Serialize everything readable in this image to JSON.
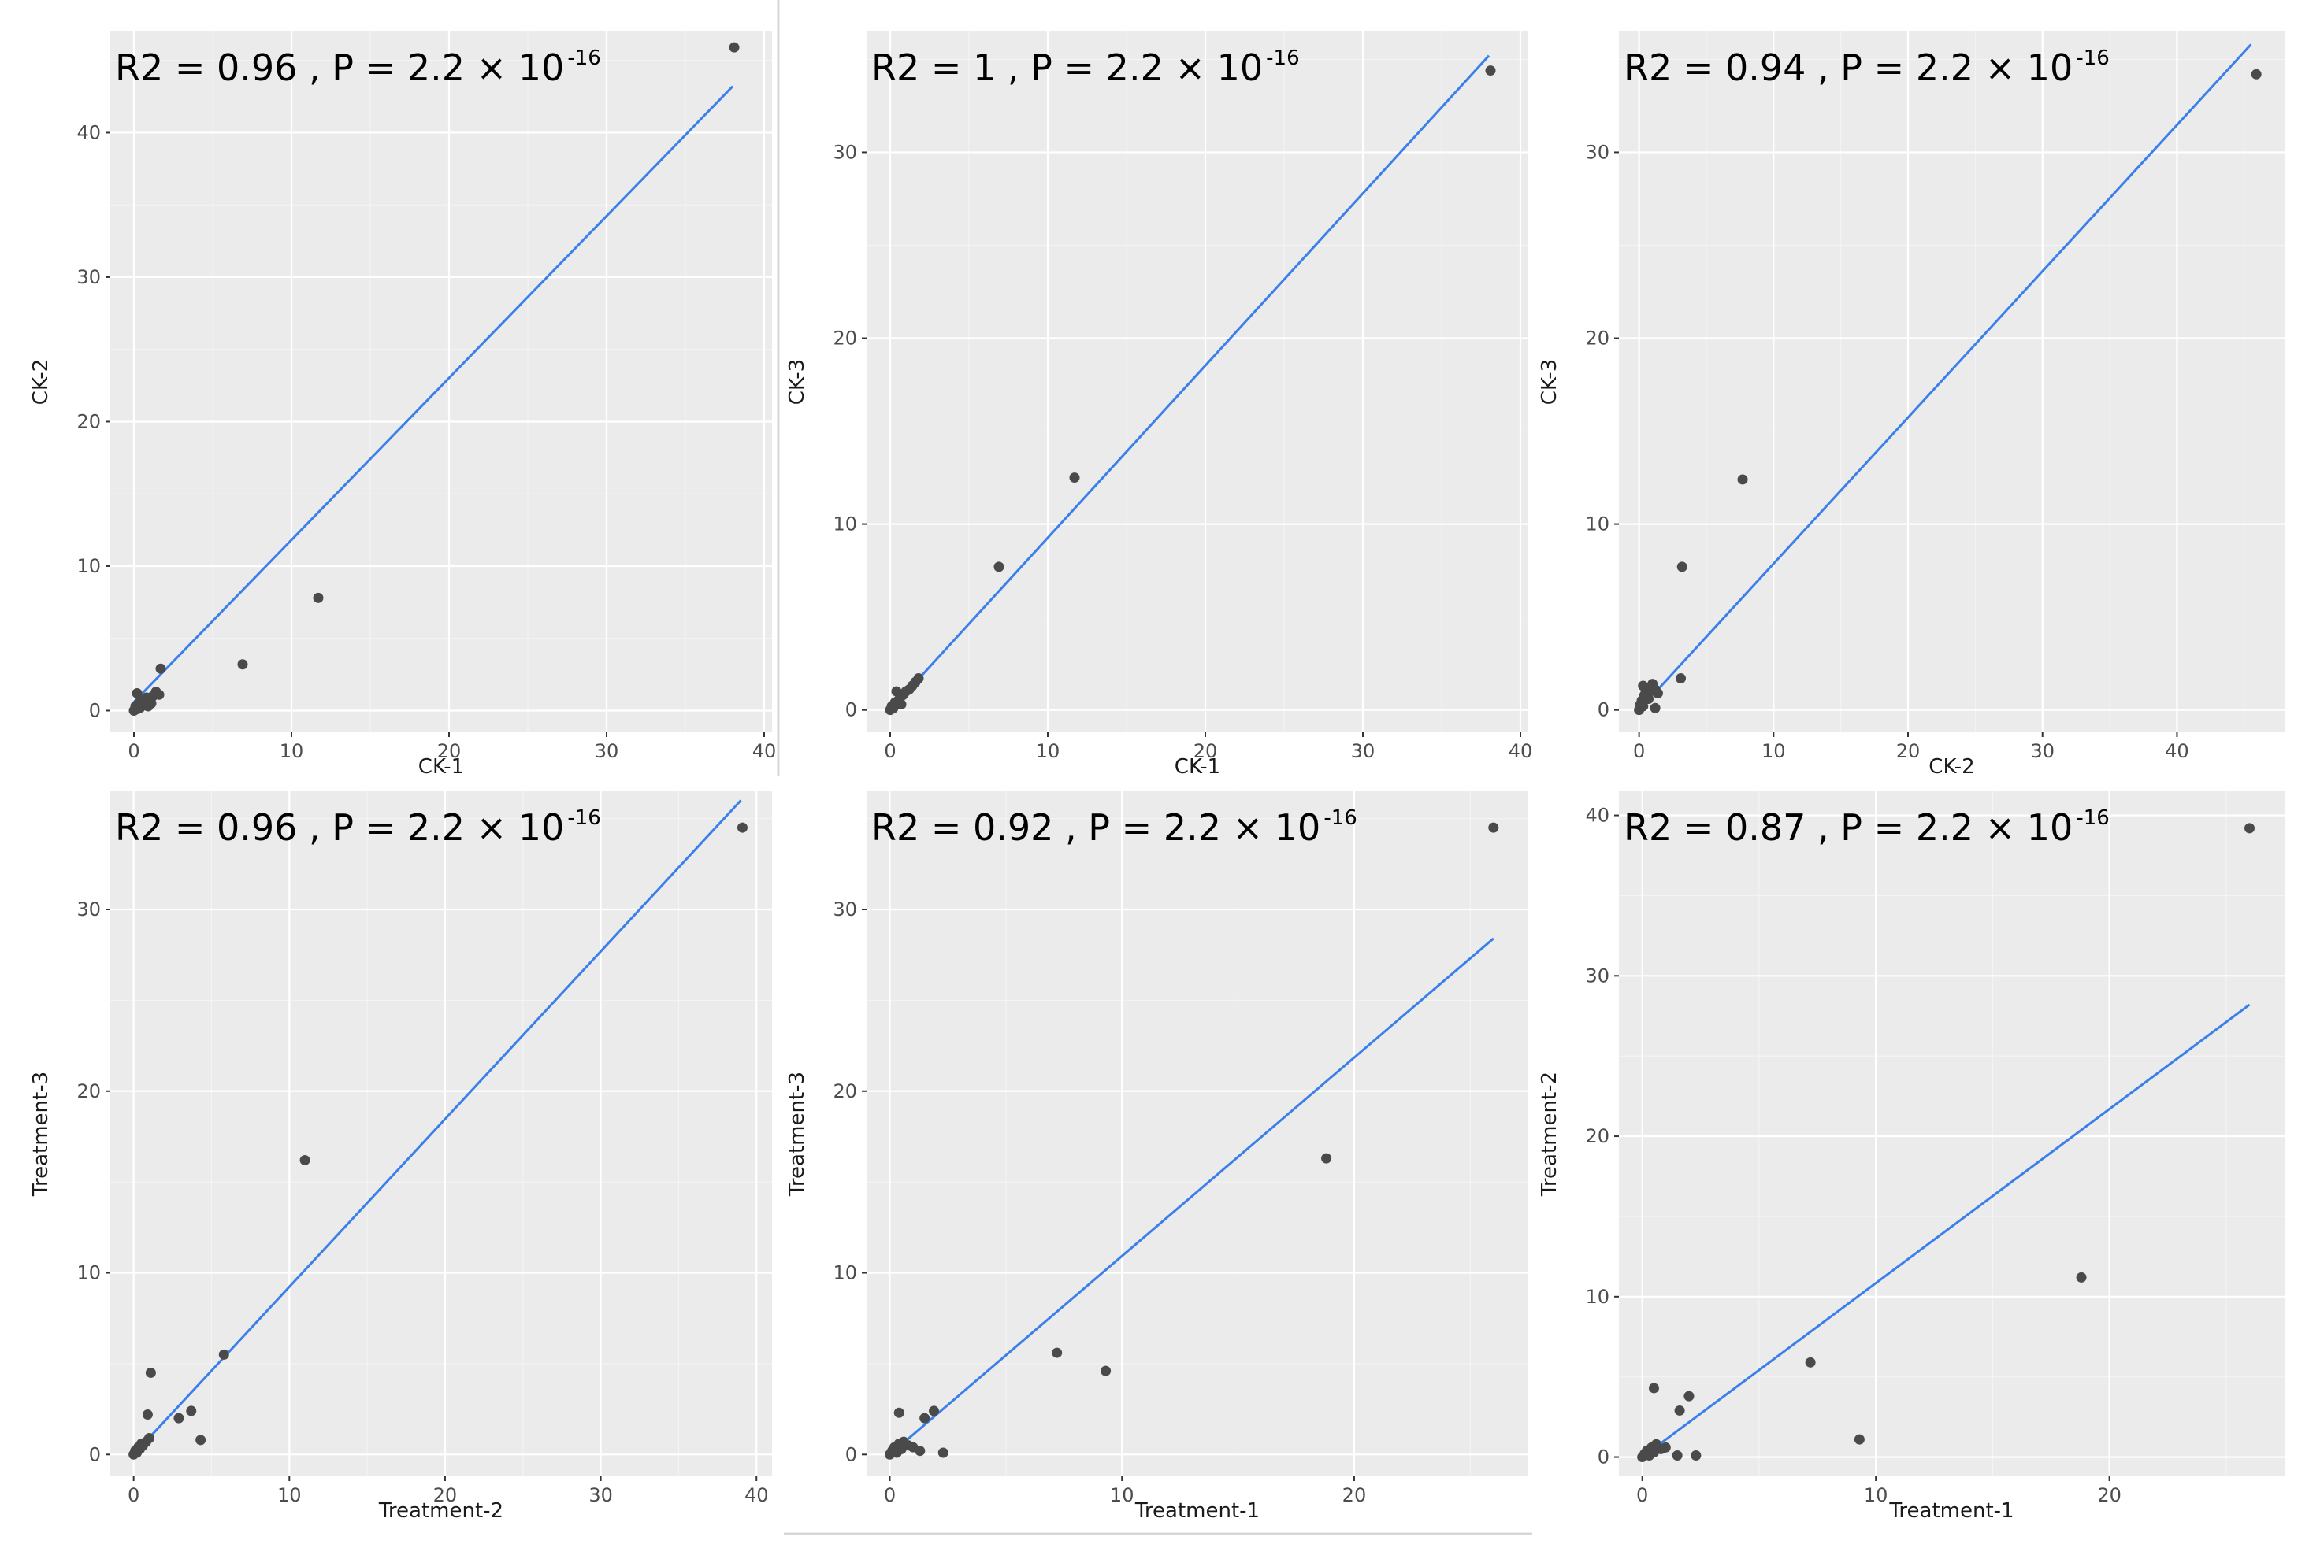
{
  "chart_data": [
    {
      "type": "scatter",
      "xlabel": "CK-1",
      "ylabel": "CK-2",
      "annotation": {
        "r2_text": "R2 = 0.96 , P = 2.2 × 10",
        "exponent": "-16"
      },
      "xlim": [
        -1.5,
        40.5
      ],
      "ylim": [
        -1.5,
        47.0
      ],
      "xticks": [
        0,
        10,
        20,
        30,
        40
      ],
      "yticks": [
        0,
        10,
        20,
        30,
        40
      ],
      "fit_line": {
        "x": [
          0,
          38.0
        ],
        "y": [
          0.6,
          43.2
        ]
      },
      "points": [
        [
          0,
          0
        ],
        [
          0.1,
          0.3
        ],
        [
          0.2,
          0.1
        ],
        [
          0.3,
          0.5
        ],
        [
          0.4,
          0.2
        ],
        [
          0.5,
          0.7
        ],
        [
          0.6,
          0.4
        ],
        [
          0.8,
          0.9
        ],
        [
          1.0,
          0.6
        ],
        [
          1.2,
          1.0
        ],
        [
          1.4,
          1.3
        ],
        [
          1.6,
          1.1
        ],
        [
          0.9,
          0.3
        ],
        [
          0.2,
          1.2
        ],
        [
          1.1,
          0.5
        ],
        [
          1.7,
          2.9
        ],
        [
          6.9,
          3.2
        ],
        [
          11.7,
          7.8
        ],
        [
          38.1,
          45.9
        ]
      ]
    },
    {
      "type": "scatter",
      "xlabel": "CK-1",
      "ylabel": "CK-3",
      "annotation": {
        "r2_text": "R2 = 1 , P = 2.2 × 10",
        "exponent": "-16"
      },
      "xlim": [
        -1.5,
        40.5
      ],
      "ylim": [
        -1.2,
        36.5
      ],
      "xticks": [
        0,
        10,
        20,
        30,
        40
      ],
      "yticks": [
        0,
        10,
        20,
        30
      ],
      "fit_line": {
        "x": [
          0,
          38.0
        ],
        "y": [
          0,
          35.2
        ]
      },
      "points": [
        [
          0,
          0
        ],
        [
          0.1,
          0.2
        ],
        [
          0.2,
          0.1
        ],
        [
          0.3,
          0.4
        ],
        [
          0.5,
          0.5
        ],
        [
          0.6,
          0.6
        ],
        [
          0.8,
          0.8
        ],
        [
          1.0,
          1.0
        ],
        [
          1.2,
          1.1
        ],
        [
          1.4,
          1.3
        ],
        [
          1.6,
          1.5
        ],
        [
          1.8,
          1.7
        ],
        [
          0.4,
          1.0
        ],
        [
          0.7,
          0.3
        ],
        [
          6.9,
          7.7
        ],
        [
          11.7,
          12.5
        ],
        [
          38.1,
          34.4
        ]
      ]
    },
    {
      "type": "scatter",
      "xlabel": "CK-2",
      "ylabel": "CK-3",
      "annotation": {
        "r2_text": "R2 = 0.94 , P = 2.2 × 10",
        "exponent": "-16"
      },
      "xlim": [
        -1.5,
        48.0
      ],
      "ylim": [
        -1.2,
        36.5
      ],
      "xticks": [
        0,
        10,
        20,
        30,
        40
      ],
      "yticks": [
        0,
        10,
        20,
        30
      ],
      "fit_line": {
        "x": [
          0,
          45.5
        ],
        "y": [
          0,
          35.8
        ]
      },
      "points": [
        [
          0,
          0
        ],
        [
          0.1,
          0.3
        ],
        [
          0.2,
          0.5
        ],
        [
          0.3,
          0.2
        ],
        [
          0.4,
          0.8
        ],
        [
          0.5,
          1.2
        ],
        [
          0.7,
          0.6
        ],
        [
          0.8,
          1.0
        ],
        [
          1.0,
          1.4
        ],
        [
          1.2,
          1.1
        ],
        [
          1.4,
          0.9
        ],
        [
          0.3,
          1.3
        ],
        [
          1.2,
          0.1
        ],
        [
          3.1,
          1.7
        ],
        [
          3.2,
          7.7
        ],
        [
          7.7,
          12.4
        ],
        [
          45.9,
          34.2
        ]
      ]
    },
    {
      "type": "scatter",
      "xlabel": "Treatment-2",
      "ylabel": "Treatment-3",
      "annotation": {
        "r2_text": "R2 = 0.96 , P = 2.2 × 10",
        "exponent": "-16"
      },
      "xlim": [
        -1.5,
        41.0
      ],
      "ylim": [
        -1.2,
        36.5
      ],
      "xticks": [
        0,
        10,
        20,
        30,
        40
      ],
      "yticks": [
        0,
        10,
        20,
        30
      ],
      "fit_line": {
        "x": [
          0,
          39.0
        ],
        "y": [
          0,
          36.0
        ]
      },
      "points": [
        [
          0,
          0
        ],
        [
          0.1,
          0.2
        ],
        [
          0.2,
          0.1
        ],
        [
          0.3,
          0.4
        ],
        [
          0.4,
          0.3
        ],
        [
          0.5,
          0.6
        ],
        [
          0.6,
          0.5
        ],
        [
          0.8,
          0.7
        ],
        [
          1.0,
          0.9
        ],
        [
          0.9,
          2.2
        ],
        [
          1.1,
          4.5
        ],
        [
          2.9,
          2.0
        ],
        [
          3.7,
          2.4
        ],
        [
          4.3,
          0.8
        ],
        [
          5.8,
          5.5
        ],
        [
          11.0,
          16.2
        ],
        [
          39.1,
          34.5
        ]
      ]
    },
    {
      "type": "scatter",
      "xlabel": "Treatment-1",
      "ylabel": "Treatment-3",
      "annotation": {
        "r2_text": "R2 = 0.92 , P = 2.2 × 10",
        "exponent": "-16"
      },
      "xlim": [
        -1.0,
        27.5
      ],
      "ylim": [
        -1.2,
        36.5
      ],
      "xticks": [
        0,
        10,
        20
      ],
      "yticks": [
        0,
        10,
        20,
        30
      ],
      "fit_line": {
        "x": [
          0,
          26.0
        ],
        "y": [
          0,
          28.4
        ]
      },
      "points": [
        [
          0,
          0
        ],
        [
          0.1,
          0.2
        ],
        [
          0.2,
          0.4
        ],
        [
          0.3,
          0.1
        ],
        [
          0.4,
          0.6
        ],
        [
          0.5,
          0.3
        ],
        [
          0.6,
          0.7
        ],
        [
          0.8,
          0.5
        ],
        [
          1.0,
          0.4
        ],
        [
          0.4,
          2.3
        ],
        [
          1.3,
          0.2
        ],
        [
          1.5,
          2.0
        ],
        [
          1.9,
          2.4
        ],
        [
          2.3,
          0.1
        ],
        [
          7.2,
          5.6
        ],
        [
          9.3,
          4.6
        ],
        [
          18.8,
          16.3
        ],
        [
          26.0,
          34.5
        ]
      ]
    },
    {
      "type": "scatter",
      "xlabel": "Treatment-1",
      "ylabel": "Treatment-2",
      "annotation": {
        "r2_text": "R2 = 0.87 , P = 2.2 × 10",
        "exponent": "-16"
      },
      "xlim": [
        -1.0,
        27.5
      ],
      "ylim": [
        -1.2,
        41.5
      ],
      "xticks": [
        0,
        10,
        20
      ],
      "yticks": [
        0,
        10,
        20,
        30,
        40
      ],
      "fit_line": {
        "x": [
          0,
          26.0
        ],
        "y": [
          0,
          28.2
        ]
      },
      "points": [
        [
          0,
          0
        ],
        [
          0.1,
          0.2
        ],
        [
          0.2,
          0.4
        ],
        [
          0.3,
          0.1
        ],
        [
          0.4,
          0.6
        ],
        [
          0.5,
          0.3
        ],
        [
          0.6,
          0.8
        ],
        [
          0.8,
          0.5
        ],
        [
          1.0,
          0.6
        ],
        [
          0.5,
          4.3
        ],
        [
          1.5,
          0.1
        ],
        [
          1.6,
          2.9
        ],
        [
          2.0,
          3.8
        ],
        [
          2.3,
          0.1
        ],
        [
          7.2,
          5.9
        ],
        [
          9.3,
          1.1
        ],
        [
          18.8,
          11.2
        ],
        [
          26.0,
          39.2
        ]
      ]
    }
  ]
}
